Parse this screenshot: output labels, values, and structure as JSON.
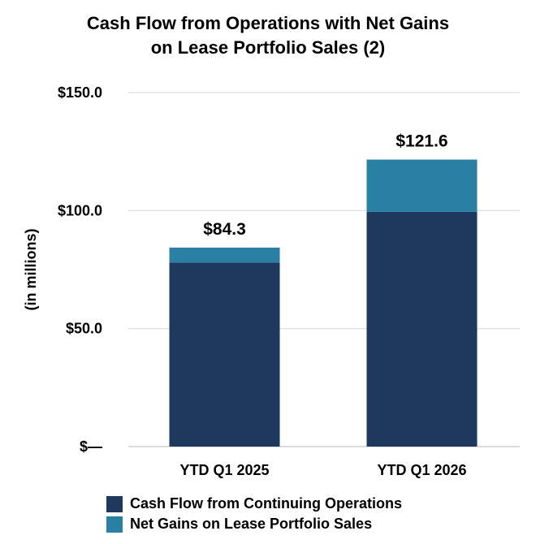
{
  "chart_data": {
    "type": "bar",
    "stacked": true,
    "title_line1": "Cash Flow from Operations with Net Gains",
    "title_line2": "on Lease Portfolio Sales (2)",
    "ylabel": "(in millions)",
    "xlabel": "",
    "ylim": [
      0,
      150
    ],
    "yticks": [
      0,
      50,
      100,
      150
    ],
    "ytick_labels": [
      "$—",
      "$50.0",
      "$100.0",
      "$150.0"
    ],
    "grid": true,
    "categories": [
      "YTD Q1 2025",
      "YTD Q1 2026"
    ],
    "totals": [
      "$84.3",
      "$121.6"
    ],
    "series": [
      {
        "name": "Cash Flow from Continuing Operations",
        "color": "#1e385e",
        "values": [
          78.0,
          99.5
        ]
      },
      {
        "name": "Net Gains on Lease Portfolio Sales",
        "color": "#2a7fa4",
        "values": [
          6.3,
          22.1
        ]
      }
    ],
    "legend_position": "bottom"
  }
}
